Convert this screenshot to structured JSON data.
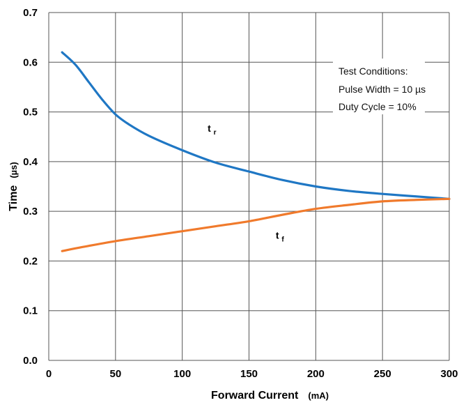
{
  "chart_data": {
    "type": "line",
    "xlabel": "Forward Current",
    "xlabel_unit": "(mA)",
    "ylabel": "Time",
    "ylabel_unit": "(µs)",
    "xlim": [
      0,
      300
    ],
    "ylim": [
      0.0,
      0.7
    ],
    "xticks": [
      "0",
      "50",
      "100",
      "150",
      "200",
      "250",
      "300"
    ],
    "yticks": [
      "0.0",
      "0.1",
      "0.2",
      "0.3",
      "0.4",
      "0.5",
      "0.6",
      "0.7"
    ],
    "grid": true,
    "series": [
      {
        "name": "tr",
        "label_main": "t",
        "label_sub": "r",
        "color": "#1f77c4",
        "x": [
          10,
          20,
          30,
          40,
          50,
          60,
          75,
          100,
          125,
          150,
          175,
          200,
          225,
          250,
          275,
          300
        ],
        "y": [
          0.62,
          0.595,
          0.56,
          0.525,
          0.495,
          0.475,
          0.452,
          0.423,
          0.398,
          0.38,
          0.363,
          0.35,
          0.341,
          0.335,
          0.33,
          0.325
        ]
      },
      {
        "name": "tf",
        "label_main": "t",
        "label_sub": "f",
        "color": "#f07a2c",
        "x": [
          10,
          25,
          50,
          75,
          100,
          125,
          150,
          175,
          200,
          225,
          250,
          275,
          300
        ],
        "y": [
          0.22,
          0.228,
          0.24,
          0.25,
          0.26,
          0.27,
          0.28,
          0.293,
          0.305,
          0.313,
          0.32,
          0.323,
          0.325
        ]
      }
    ],
    "annotation": {
      "lines": [
        "Test Conditions:",
        "Pulse Width = 10 µs",
        "Duty Cycle = 10%"
      ]
    }
  }
}
